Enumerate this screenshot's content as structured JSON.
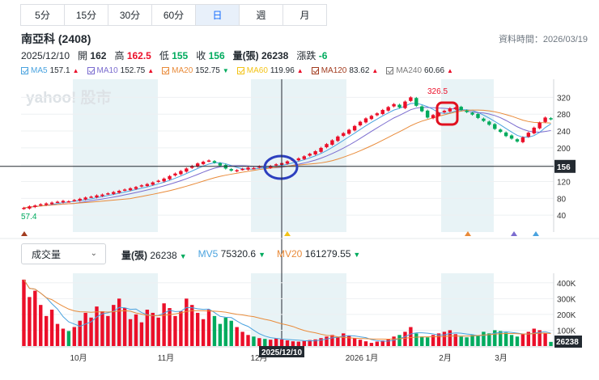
{
  "tabs": [
    "5分",
    "15分",
    "30分",
    "60分",
    "日",
    "週",
    "月"
  ],
  "active_tab": "日",
  "stock": {
    "name_code": "南亞科 (2408)",
    "data_time": "資料時間：2026/03/19"
  },
  "ohlc": {
    "date": "2025/12/10",
    "open_label": "開",
    "open": "162",
    "high_label": "高",
    "high": "162.5",
    "low_label": "低",
    "low": "155",
    "close_label": "收",
    "close": "156",
    "vol_label": "量(張)",
    "vol": "26238",
    "chg_label": "漲跌",
    "chg": "-6"
  },
  "ma_legend": [
    {
      "label": "MA5",
      "value": "157.1",
      "color": "#4aa3df",
      "trend": "up"
    },
    {
      "label": "MA10",
      "value": "152.75",
      "color": "#7b6ccf",
      "trend": "up"
    },
    {
      "label": "MA20",
      "value": "152.75",
      "color": "#e98b3a",
      "trend": "down"
    },
    {
      "label": "MA60",
      "value": "119.96",
      "color": "#f3c316",
      "trend": "up"
    },
    {
      "label": "MA120",
      "value": "83.62",
      "color": "#a23c1f",
      "trend": "up"
    },
    {
      "label": "MA240",
      "value": "60.66",
      "color": "#7a7a7a",
      "trend": "up"
    }
  ],
  "colors": {
    "up": "#eb0f29",
    "down": "#00ab5e",
    "ma5": "#4aa3df",
    "ma10": "#7b6ccf",
    "ma20": "#e98b3a",
    "band": "#e8f3f6"
  },
  "watermark": "yahoo! 股市",
  "volume": {
    "select_label": "成交量",
    "vol_label": "量(張)",
    "vol_value": "26238",
    "vol_trend": "down",
    "mv5_label": "MV5",
    "mv5_value": "75320.6",
    "mv5_trend": "down",
    "mv20_label": "MV20",
    "mv20_value": "161279.55",
    "mv20_trend": "down",
    "current_tag": "26238"
  },
  "chart_data": [
    {
      "type": "candlestick",
      "title": "",
      "ylabel": "",
      "ylim": [
        0,
        340
      ],
      "yticks": [
        40,
        80,
        120,
        160,
        200,
        240,
        280,
        320
      ],
      "x_tick_labels": [
        "10月",
        "11月",
        "12月",
        "2026 1月",
        "2月",
        "3月"
      ],
      "annotations": {
        "max_label": "326.5",
        "min_label": "57.4",
        "current_price": "156",
        "crosshair_date": "2025/12/10"
      },
      "series": [
        {
          "name": "MA5"
        },
        {
          "name": "MA10"
        },
        {
          "name": "MA20"
        }
      ],
      "closes": [
        57.4,
        61,
        63,
        66,
        68,
        70,
        72,
        74,
        73,
        76,
        79,
        82,
        84,
        87,
        89,
        92,
        95,
        98,
        101,
        104,
        107,
        111,
        114,
        118,
        122,
        127,
        133,
        139,
        145,
        151,
        157,
        163,
        167,
        170,
        165,
        158,
        151,
        146,
        147,
        150,
        153,
        152,
        156,
        154,
        157,
        161,
        164,
        168,
        172,
        175,
        180,
        186,
        192,
        200,
        209,
        218,
        227,
        235,
        243,
        252,
        262,
        270,
        276,
        282,
        290,
        297,
        304,
        296,
        310,
        320,
        300,
        287,
        272,
        278,
        283,
        288,
        294,
        296,
        290,
        285,
        279,
        271,
        264,
        255,
        245,
        238,
        228,
        222,
        215,
        225,
        236,
        248,
        260,
        272,
        268
      ],
      "volume_unit": "張",
      "volume_yticks": [
        "100K",
        "200K",
        "300K",
        "400K"
      ],
      "volumes_k": [
        420,
        310,
        350,
        260,
        190,
        230,
        140,
        110,
        95,
        120,
        160,
        210,
        180,
        250,
        220,
        190,
        260,
        300,
        240,
        170,
        200,
        150,
        230,
        210,
        180,
        270,
        240,
        190,
        220,
        300,
        260,
        210,
        170,
        230,
        190,
        140,
        180,
        160,
        120,
        90,
        70,
        60,
        50,
        45,
        40,
        48,
        42,
        36,
        30,
        28,
        32,
        38,
        42,
        50,
        60,
        70,
        55,
        80,
        65,
        50,
        40,
        30,
        20,
        28,
        35,
        42,
        60,
        70,
        90,
        120,
        80,
        60,
        55,
        70,
        80,
        90,
        100,
        75,
        60,
        55,
        70,
        65,
        90,
        80,
        100,
        95,
        85,
        70,
        60,
        75,
        90,
        110,
        100,
        80,
        26.238
      ]
    }
  ]
}
